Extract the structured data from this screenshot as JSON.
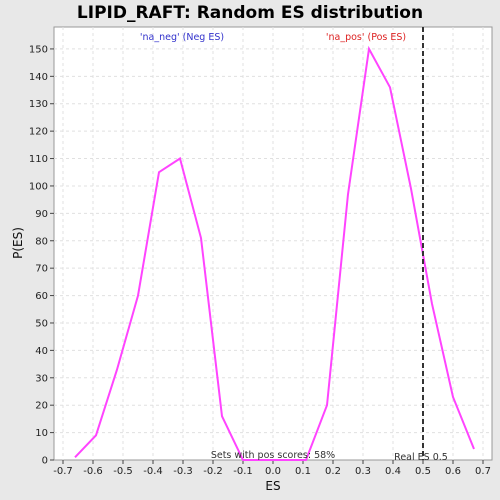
{
  "chart_data": {
    "type": "line",
    "title": "LIPID_RAFT: Random ES distribution",
    "xlabel": "ES",
    "ylabel": "P(ES)",
    "xlim": [
      -0.73,
      0.73
    ],
    "ylim": [
      0,
      158
    ],
    "x_ticks": [
      -0.7,
      -0.6,
      -0.5,
      -0.4,
      -0.3,
      -0.2,
      -0.1,
      0.0,
      0.1,
      0.2,
      0.3,
      0.4,
      0.5,
      0.6,
      0.7
    ],
    "x_tick_labels": [
      "-0.7",
      "-0.6",
      "-0.5",
      "-0.4",
      "-0.3",
      "-0.2",
      "-0.1",
      "0.0",
      "0.1",
      "0.2",
      "0.3",
      "0.4",
      "0.5",
      "0.6",
      "0.7"
    ],
    "y_ticks": [
      0,
      10,
      20,
      30,
      40,
      50,
      60,
      70,
      80,
      90,
      100,
      110,
      120,
      130,
      140,
      150
    ],
    "grid": true,
    "series": [
      {
        "color": "#ff44ff",
        "x": [
          -0.66,
          -0.59,
          -0.52,
          -0.45,
          -0.38,
          -0.31,
          -0.24,
          -0.17,
          -0.1,
          -0.03,
          0.04,
          0.11,
          0.18,
          0.25,
          0.32,
          0.39,
          0.46,
          0.53,
          0.6,
          0.67
        ],
        "y": [
          1,
          9,
          33,
          60,
          105,
          110,
          81,
          16,
          0,
          0,
          0,
          0,
          20,
          97,
          150,
          136,
          99,
          57,
          23,
          4
        ]
      }
    ],
    "reference_line": {
      "x": 0.5,
      "style": "dashed",
      "color": "#333333"
    },
    "annotations": {
      "neg_label": "'na_neg' (Neg ES)",
      "neg_color": "#3333cc",
      "pos_label": "'na_pos' (Pos ES)",
      "pos_color": "#dd2222",
      "pos_scores": "Sets with pos scores: 58%",
      "real_es": "Real ES 0.5"
    }
  }
}
